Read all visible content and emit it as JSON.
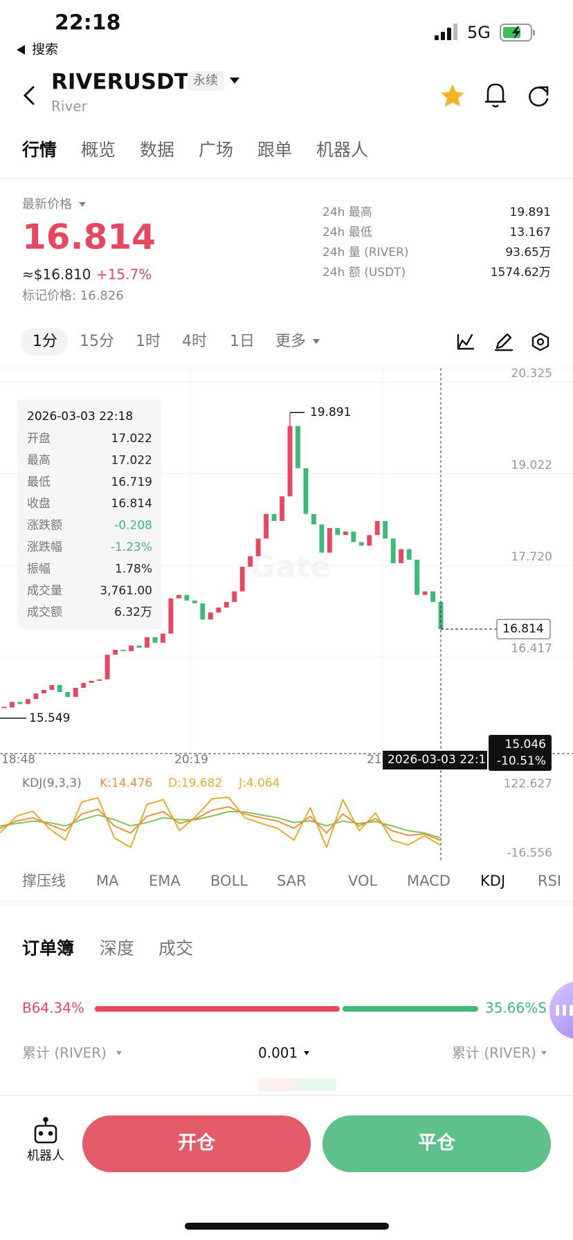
{
  "status_bar": {
    "time": "22:18",
    "back_label": "搜索",
    "network": "5G"
  },
  "header": {
    "symbol": "RIVERUSDT",
    "tag": "永续",
    "name": "River"
  },
  "tabs": [
    "行情",
    "概览",
    "数据",
    "广场",
    "跟单",
    "机器人"
  ],
  "price_panel": {
    "label": "最新价格",
    "price": "16.814",
    "approx": "≈$16.810",
    "change": "+15.7%",
    "mark_price": "标记价格: 16.826",
    "stats": [
      {
        "label": "24h  最高",
        "value": "19.891"
      },
      {
        "label": "24h  最低",
        "value": "13.167"
      },
      {
        "label": "24h  量 (RIVER)",
        "value": "93.65万"
      },
      {
        "label": "24h  额 (USDT)",
        "value": "1574.62万"
      }
    ]
  },
  "periods": [
    "1分",
    "15分",
    "1时",
    "4时",
    "1日",
    "更多"
  ],
  "chart_data": {
    "type": "candlestick",
    "closes": [
      15.7,
      15.78,
      15.75,
      15.82,
      15.9,
      15.95,
      16.02,
      15.92,
      15.85,
      15.98,
      16.05,
      16.08,
      16.1,
      16.45,
      16.52,
      16.5,
      16.58,
      16.55,
      16.7,
      16.62,
      16.75,
      17.25,
      17.3,
      17.22,
      17.18,
      16.95,
      17.05,
      17.12,
      17.2,
      17.35,
      17.7,
      17.85,
      18.1,
      18.45,
      18.35,
      18.7,
      19.7,
      19.1,
      18.45,
      18.3,
      17.9,
      18.25,
      18.15,
      18.2,
      18.05,
      18.0,
      18.15,
      18.35,
      18.1,
      17.75,
      17.95,
      17.8,
      17.3,
      17.35,
      17.2,
      16.814
    ],
    "up_color": "#e5485f",
    "down_color": "#3fb97a",
    "ylim": [
      15.046,
      20.325
    ],
    "yticks": [
      20.325,
      19.022,
      {
        "value": 17.72,
        "label": "17.720"
      },
      16.417
    ],
    "x_labels": [
      "18:48",
      "20:19",
      "21"
    ],
    "high": 19.891,
    "low": 15.549,
    "last": 16.814,
    "crosshair": {
      "time": "2026-03-03 22:1",
      "price": 15.046,
      "change": "-10.51%"
    },
    "watermark": "Gate",
    "tooltip": {
      "time": "2026-03-03 22:18",
      "rows": [
        {
          "label": "开盘",
          "value": "17.022",
          "color": "#222222"
        },
        {
          "label": "最高",
          "value": "17.022",
          "color": "#222222"
        },
        {
          "label": "最低",
          "value": "16.719",
          "color": "#222222"
        },
        {
          "label": "收盘",
          "value": "16.814",
          "color": "#222222"
        },
        {
          "label": "涨跌额",
          "value": "-0.208",
          "color": "#3fb97a"
        },
        {
          "label": "涨跌幅",
          "value": "-1.23%",
          "color": "#3fb97a"
        },
        {
          "label": "振幅",
          "value": "1.78%",
          "color": "#222222"
        },
        {
          "label": "成交量",
          "value": "3,761.00",
          "color": "#222222"
        },
        {
          "label": "成交额",
          "value": "6.32万",
          "color": "#222222"
        }
      ]
    },
    "kdj": {
      "title": "KDJ(9,3,3)",
      "ylim": [
        -16.556,
        122.627
      ],
      "yticks": [
        122.627,
        -16.556
      ],
      "series": [
        {
          "name": "K:14.476",
          "color": "#ef8f3a",
          "values": [
            40,
            55,
            62,
            48,
            35,
            70,
            80,
            45,
            30,
            65,
            75,
            50,
            60,
            78,
            85,
            70,
            62,
            55,
            40,
            65,
            30,
            70,
            45,
            60,
            35,
            25,
            28,
            14.476
          ]
        },
        {
          "name": "D:19.682",
          "color": "#e4ad2f",
          "line_color": "#7fc45c",
          "values": [
            45,
            50,
            55,
            52,
            45,
            58,
            68,
            58,
            45,
            52,
            62,
            58,
            58,
            66,
            75,
            74,
            68,
            62,
            52,
            56,
            45,
            55,
            50,
            54,
            45,
            35,
            30,
            19.682
          ]
        },
        {
          "name": "J:4.064",
          "color": "#e4ad2f",
          "values": [
            30,
            65,
            76,
            40,
            15,
            95,
            104,
            20,
            0,
            90,
            100,
            35,
            65,
            102,
            105,
            62,
            50,
            40,
            15,
            83,
            0,
            100,
            35,
            72,
            15,
            5,
            24,
            4.064
          ]
        }
      ]
    }
  },
  "indicators": [
    "撑压线",
    "MA",
    "EMA",
    "BOLL",
    "SAR",
    "VOL",
    "MACD",
    "KDJ",
    "RSI"
  ],
  "order_book": {
    "tabs": [
      "订单簿",
      "深度",
      "成交"
    ],
    "ratio": {
      "values": [
        64.34,
        35.66
      ],
      "value_labels": [
        "B64.34%",
        "35.66%S"
      ],
      "colors": [
        "#e5485f",
        "#3fb97a"
      ]
    },
    "left_column": "累计 (RIVER)",
    "precision": "0.001",
    "right_column": "累计 (RIVER)"
  },
  "bottom_bar": {
    "robot": "机器人",
    "open": "开仓",
    "close": "平仓"
  }
}
